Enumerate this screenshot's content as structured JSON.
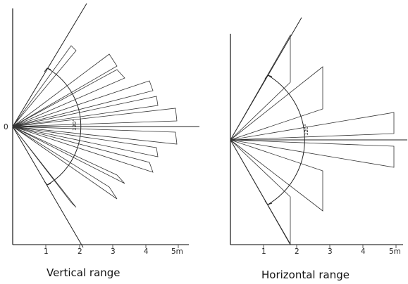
{
  "vertical_diagram": {
    "caption": "Vertical range",
    "origin_label": "0",
    "angle_label": "120°",
    "distance_ticks": [
      "1",
      "2",
      "3",
      "4",
      "5m"
    ]
  },
  "horizontal_diagram": {
    "caption": "Horizontal range",
    "angle_label": "120°",
    "distance_ticks": [
      "1",
      "2",
      "3",
      "4",
      "5m"
    ]
  }
}
